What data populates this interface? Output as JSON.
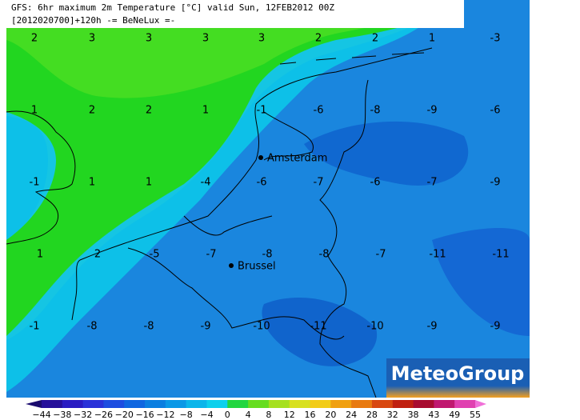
{
  "header": {
    "line1": "GFS: 6hr maximum 2m Temperature [°C] valid Sun, 12FEB2012 00Z",
    "line2": "[2012020700]+120h  -= BeNeLux =-"
  },
  "cities": [
    {
      "label": "Amsterdam"
    },
    {
      "label": "Brussel"
    }
  ],
  "grid": {
    "rows": [
      [
        "2",
        "3",
        "3",
        "3",
        "3",
        "2",
        "2",
        "1",
        "-3"
      ],
      [
        "1",
        "2",
        "2",
        "1",
        "-1",
        "-6",
        "-8",
        "-9",
        "-6"
      ],
      [
        "-1",
        "1",
        "1",
        "-4",
        "-6",
        "-7",
        "-6",
        "-7",
        "-9"
      ],
      [
        "1",
        "2",
        "-5",
        "-7",
        "-8",
        "-8",
        "-7",
        "-11",
        "-11"
      ],
      [
        "-1",
        "-8",
        "-8",
        "-9",
        "-10",
        "-11",
        "-10",
        "-9",
        "-9"
      ]
    ]
  },
  "logo": "MeteoGroup",
  "legend": {
    "labels": [
      "−44",
      "−38",
      "−32",
      "−26",
      "−20",
      "−16",
      "−12",
      "−8",
      "−4",
      "0",
      "4",
      "8",
      "12",
      "16",
      "20",
      "24",
      "28",
      "32",
      "38",
      "43",
      "49",
      "55"
    ],
    "colors": [
      "#1a0b6e",
      "#26109a",
      "#2a1cc2",
      "#2a32d8",
      "#1d4de0",
      "#0f66e0",
      "#0a7ee0",
      "#0a98e6",
      "#0bb5ea",
      "#0dd0ec",
      "#22d640",
      "#66dd20",
      "#a6e020",
      "#d8e020",
      "#f2cc18",
      "#f0a010",
      "#e87a10",
      "#d84810",
      "#c02010",
      "#a80c30",
      "#c01870",
      "#e040b0",
      "#f070d8"
    ]
  }
}
